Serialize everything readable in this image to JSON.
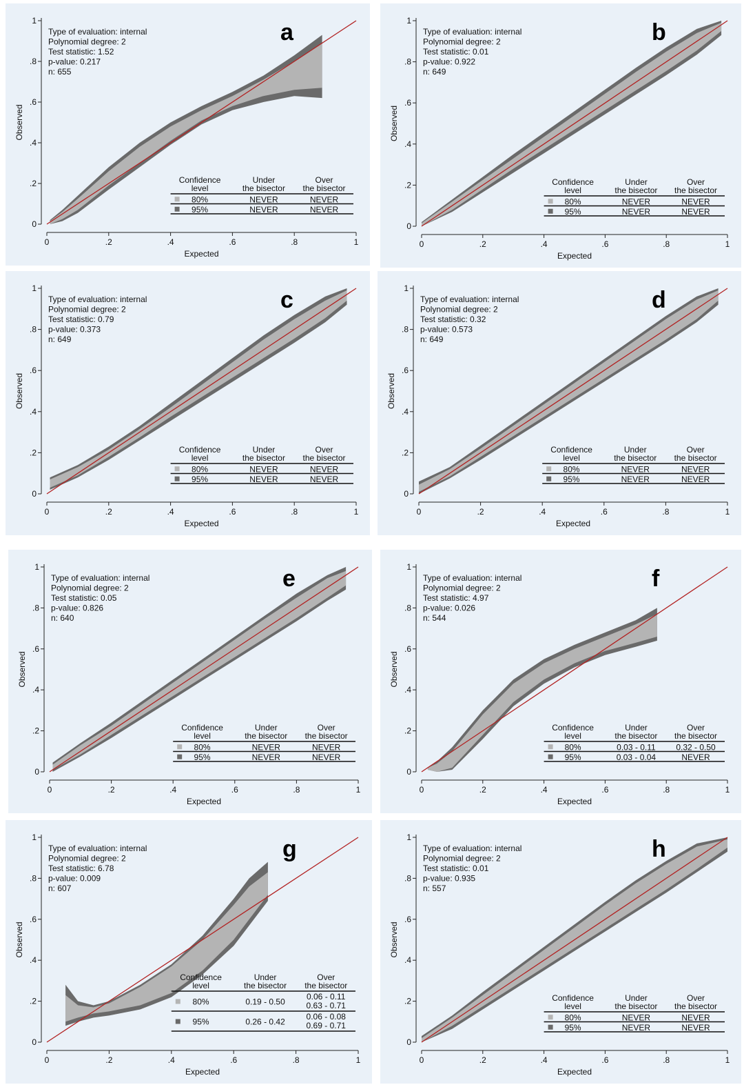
{
  "chart_data": [
    {
      "type": "area",
      "letter": "a",
      "xlabel": "Expected",
      "ylabel": "Observed",
      "xlim": [
        0,
        1
      ],
      "ylim": [
        0,
        1
      ],
      "x_ticks": [
        "0",
        ".2",
        ".4",
        ".6",
        ".8",
        "1"
      ],
      "y_ticks": [
        "0",
        ".2",
        ".4",
        ".6",
        ".8",
        "1"
      ],
      "info": [
        "Type of evaluation: internal",
        "Polynomial degree: 2",
        "Test statistic: 1.52",
        "p-value: 0.217",
        "n: 655"
      ],
      "legend": {
        "headers": [
          [
            "Confidence",
            "level"
          ],
          [
            "Under",
            "the bisector"
          ],
          [
            "Over",
            "the bisector"
          ]
        ],
        "rows": [
          {
            "level": "80%",
            "under": [
              "NEVER"
            ],
            "over": [
              "NEVER"
            ]
          },
          {
            "level": "95%",
            "under": [
              "NEVER"
            ],
            "over": [
              "NEVER"
            ]
          }
        ]
      },
      "band_x": [
        0.01,
        0.05,
        0.1,
        0.2,
        0.3,
        0.4,
        0.5,
        0.6,
        0.7,
        0.8,
        0.89
      ],
      "ci95_upper": [
        0.02,
        0.07,
        0.14,
        0.28,
        0.4,
        0.5,
        0.58,
        0.65,
        0.73,
        0.83,
        0.93
      ],
      "ci80_upper": [
        0.015,
        0.06,
        0.125,
        0.26,
        0.38,
        0.48,
        0.56,
        0.63,
        0.71,
        0.8,
        0.89
      ],
      "ci80_lower": [
        0.0,
        0.025,
        0.07,
        0.19,
        0.3,
        0.41,
        0.51,
        0.58,
        0.63,
        0.66,
        0.67
      ],
      "ci95_lower": [
        0.0,
        0.015,
        0.055,
        0.17,
        0.28,
        0.39,
        0.49,
        0.56,
        0.6,
        0.63,
        0.62
      ]
    },
    {
      "type": "area",
      "letter": "b",
      "xlabel": "Expected",
      "ylabel": "Observed",
      "xlim": [
        0,
        1
      ],
      "ylim": [
        0,
        1
      ],
      "x_ticks": [
        "0",
        ".2",
        ".4",
        ".6",
        ".8",
        "1"
      ],
      "y_ticks": [
        "0",
        ".2",
        ".4",
        ".6",
        ".8",
        "1"
      ],
      "info": [
        "Type of evaluation: internal",
        "Polynomial degree: 2",
        "Test statistic: 0.01",
        "p-value: 0.922",
        "n: 649"
      ],
      "legend": {
        "headers": [
          [
            "Confidence",
            "level"
          ],
          [
            "Under",
            "the bisector"
          ],
          [
            "Over",
            "the bisector"
          ]
        ],
        "rows": [
          {
            "level": "80%",
            "under": [
              "NEVER"
            ],
            "over": [
              "NEVER"
            ]
          },
          {
            "level": "95%",
            "under": [
              "NEVER"
            ],
            "over": [
              "NEVER"
            ]
          }
        ]
      },
      "band_x": [
        0.0,
        0.1,
        0.2,
        0.3,
        0.4,
        0.5,
        0.6,
        0.7,
        0.8,
        0.9,
        0.98
      ],
      "ci95_upper": [
        0.02,
        0.13,
        0.24,
        0.35,
        0.455,
        0.56,
        0.665,
        0.77,
        0.87,
        0.96,
        1.0
      ],
      "ci80_upper": [
        0.015,
        0.12,
        0.225,
        0.33,
        0.435,
        0.54,
        0.645,
        0.75,
        0.85,
        0.94,
        0.99
      ],
      "ci80_lower": [
        0.0,
        0.08,
        0.18,
        0.28,
        0.375,
        0.47,
        0.565,
        0.66,
        0.755,
        0.855,
        0.95
      ],
      "ci95_lower": [
        0.0,
        0.07,
        0.165,
        0.26,
        0.355,
        0.45,
        0.545,
        0.64,
        0.735,
        0.835,
        0.93
      ]
    },
    {
      "type": "area",
      "letter": "c",
      "xlabel": "Expected",
      "ylabel": "Observed",
      "xlim": [
        0,
        1
      ],
      "ylim": [
        0,
        1
      ],
      "x_ticks": [
        "0",
        ".2",
        ".4",
        ".6",
        ".8",
        "1"
      ],
      "y_ticks": [
        "0",
        ".2",
        ".4",
        ".6",
        ".8",
        "1"
      ],
      "info": [
        "Type of evaluation: internal",
        "Polynomial degree: 2",
        "Test statistic: 0.79",
        "p-value: 0.373",
        "n: 649"
      ],
      "legend": {
        "headers": [
          [
            "Confidence",
            "level"
          ],
          [
            "Under",
            "the bisector"
          ],
          [
            "Over",
            "the bisector"
          ]
        ],
        "rows": [
          {
            "level": "80%",
            "under": [
              "NEVER"
            ],
            "over": [
              "NEVER"
            ]
          },
          {
            "level": "95%",
            "under": [
              "NEVER"
            ],
            "over": [
              "NEVER"
            ]
          }
        ]
      },
      "band_x": [
        0.01,
        0.1,
        0.2,
        0.3,
        0.4,
        0.5,
        0.6,
        0.7,
        0.8,
        0.9,
        0.97
      ],
      "ci95_upper": [
        0.08,
        0.14,
        0.23,
        0.33,
        0.44,
        0.55,
        0.66,
        0.77,
        0.87,
        0.96,
        1.0
      ],
      "ci80_upper": [
        0.07,
        0.13,
        0.215,
        0.315,
        0.42,
        0.53,
        0.64,
        0.75,
        0.85,
        0.94,
        0.99
      ],
      "ci80_lower": [
        0.03,
        0.09,
        0.18,
        0.275,
        0.375,
        0.47,
        0.565,
        0.66,
        0.755,
        0.855,
        0.94
      ],
      "ci95_lower": [
        0.02,
        0.08,
        0.165,
        0.26,
        0.355,
        0.45,
        0.545,
        0.64,
        0.735,
        0.835,
        0.92
      ]
    },
    {
      "type": "area",
      "letter": "d",
      "xlabel": "Expected",
      "ylabel": "Observed",
      "xlim": [
        0,
        1
      ],
      "ylim": [
        0,
        1
      ],
      "x_ticks": [
        "0",
        ".2",
        ".4",
        ".6",
        ".8",
        "1"
      ],
      "y_ticks": [
        "0",
        ".2",
        ".4",
        ".6",
        ".8",
        "1"
      ],
      "info": [
        "Type of evaluation: internal",
        "Polynomial degree: 2",
        "Test statistic: 0.32",
        "p-value: 0.573",
        "n: 649"
      ],
      "legend": {
        "headers": [
          [
            "Confidence",
            "level"
          ],
          [
            "Under",
            "the bisector"
          ],
          [
            "Over",
            "the bisector"
          ]
        ],
        "rows": [
          {
            "level": "80%",
            "under": [
              "NEVER"
            ],
            "over": [
              "NEVER"
            ]
          },
          {
            "level": "95%",
            "under": [
              "NEVER"
            ],
            "over": [
              "NEVER"
            ]
          }
        ]
      },
      "band_x": [
        0.0,
        0.1,
        0.2,
        0.3,
        0.4,
        0.5,
        0.6,
        0.7,
        0.8,
        0.9,
        0.97
      ],
      "ci95_upper": [
        0.06,
        0.13,
        0.235,
        0.34,
        0.445,
        0.55,
        0.655,
        0.76,
        0.865,
        0.96,
        1.0
      ],
      "ci80_upper": [
        0.045,
        0.12,
        0.22,
        0.325,
        0.43,
        0.535,
        0.64,
        0.745,
        0.85,
        0.945,
        0.99
      ],
      "ci80_lower": [
        0.01,
        0.085,
        0.18,
        0.275,
        0.37,
        0.465,
        0.56,
        0.655,
        0.75,
        0.85,
        0.94
      ],
      "ci95_lower": [
        0.0,
        0.075,
        0.165,
        0.26,
        0.355,
        0.45,
        0.545,
        0.64,
        0.735,
        0.835,
        0.92
      ]
    },
    {
      "type": "area",
      "letter": "e",
      "xlabel": "Expected",
      "ylabel": "Observed",
      "xlim": [
        0,
        1
      ],
      "ylim": [
        0,
        1
      ],
      "x_ticks": [
        "0",
        ".2",
        ".4",
        ".6",
        ".8",
        "1"
      ],
      "y_ticks": [
        "0",
        ".2",
        ".4",
        ".6",
        ".8",
        "1"
      ],
      "info": [
        "Type of evaluation: internal",
        "Polynomial degree: 2",
        "Test statistic: 0.05",
        "p-value: 0.826",
        "n: 640"
      ],
      "legend": {
        "headers": [
          [
            "Confidence",
            "level"
          ],
          [
            "Under",
            "the bisector"
          ],
          [
            "Over",
            "the bisector"
          ]
        ],
        "rows": [
          {
            "level": "80%",
            "under": [
              "NEVER"
            ],
            "over": [
              "NEVER"
            ]
          },
          {
            "level": "95%",
            "under": [
              "NEVER"
            ],
            "over": [
              "NEVER"
            ]
          }
        ]
      },
      "band_x": [
        0.01,
        0.1,
        0.2,
        0.3,
        0.4,
        0.5,
        0.6,
        0.7,
        0.8,
        0.9,
        0.96
      ],
      "ci95_upper": [
        0.045,
        0.14,
        0.24,
        0.345,
        0.45,
        0.555,
        0.66,
        0.765,
        0.87,
        0.96,
        1.0
      ],
      "ci80_upper": [
        0.035,
        0.13,
        0.225,
        0.33,
        0.435,
        0.54,
        0.645,
        0.75,
        0.85,
        0.945,
        0.98
      ],
      "ci80_lower": [
        0.01,
        0.085,
        0.18,
        0.275,
        0.37,
        0.465,
        0.56,
        0.655,
        0.75,
        0.85,
        0.91
      ],
      "ci95_lower": [
        0.0,
        0.075,
        0.165,
        0.26,
        0.355,
        0.45,
        0.545,
        0.64,
        0.735,
        0.835,
        0.89
      ]
    },
    {
      "type": "area",
      "letter": "f",
      "xlabel": "Expected",
      "ylabel": "Observed",
      "xlim": [
        0,
        1
      ],
      "ylim": [
        0,
        1
      ],
      "x_ticks": [
        "0",
        ".2",
        ".4",
        ".6",
        ".8",
        "1"
      ],
      "y_ticks": [
        "0",
        ".2",
        ".4",
        ".6",
        ".8",
        "1"
      ],
      "info": [
        "Type of evaluation: internal",
        "Polynomial degree: 2",
        "Test statistic: 4.97",
        "p-value: 0.026",
        "n: 544"
      ],
      "legend": {
        "headers": [
          [
            "Confidence",
            "level"
          ],
          [
            "Under",
            "the bisector"
          ],
          [
            "Over",
            "the bisector"
          ]
        ],
        "rows": [
          {
            "level": "80%",
            "under": [
              "0.03 - 0.11"
            ],
            "over": [
              "0.32 - 0.50"
            ]
          },
          {
            "level": "95%",
            "under": [
              "0.03 - 0.04"
            ],
            "over": [
              "NEVER"
            ]
          }
        ]
      },
      "band_x": [
        0.02,
        0.05,
        0.1,
        0.2,
        0.3,
        0.4,
        0.5,
        0.6,
        0.7,
        0.77
      ],
      "ci95_upper": [
        0.02,
        0.05,
        0.12,
        0.3,
        0.45,
        0.55,
        0.62,
        0.68,
        0.74,
        0.8
      ],
      "ci80_upper": [
        0.02,
        0.04,
        0.1,
        0.28,
        0.43,
        0.53,
        0.6,
        0.66,
        0.72,
        0.77
      ],
      "ci80_lower": [
        0.01,
        0.0,
        0.02,
        0.18,
        0.34,
        0.45,
        0.53,
        0.59,
        0.63,
        0.66
      ],
      "ci95_lower": [
        0.01,
        0.0,
        0.01,
        0.16,
        0.32,
        0.43,
        0.51,
        0.57,
        0.61,
        0.64
      ]
    },
    {
      "type": "area",
      "letter": "g",
      "xlabel": "Expected",
      "ylabel": "Observed",
      "xlim": [
        0,
        1
      ],
      "ylim": [
        0,
        1
      ],
      "x_ticks": [
        "0",
        ".2",
        ".4",
        ".6",
        ".8",
        "1"
      ],
      "y_ticks": [
        "0",
        ".2",
        ".4",
        ".6",
        ".8",
        "1"
      ],
      "info": [
        "Type of evaluation: internal",
        "Polynomial degree: 2",
        "Test statistic: 6.78",
        "p-value: 0.009",
        "n: 607"
      ],
      "legend": {
        "headers": [
          [
            "Confidence",
            "level"
          ],
          [
            "Under",
            "the bisector"
          ],
          [
            "Over",
            "the bisector"
          ]
        ],
        "rows": [
          {
            "level": "80%",
            "under": [
              "0.19 - 0.50"
            ],
            "over": [
              "0.06 - 0.11",
              "0.63 - 0.71"
            ]
          },
          {
            "level": "95%",
            "under": [
              "0.26 - 0.42"
            ],
            "over": [
              "0.06 - 0.08",
              "0.69 - 0.71"
            ]
          }
        ]
      },
      "band_x": [
        0.06,
        0.1,
        0.15,
        0.2,
        0.3,
        0.4,
        0.5,
        0.6,
        0.65,
        0.71
      ],
      "ci95_upper": [
        0.28,
        0.2,
        0.18,
        0.2,
        0.28,
        0.38,
        0.52,
        0.7,
        0.8,
        0.88
      ],
      "ci80_upper": [
        0.23,
        0.18,
        0.17,
        0.19,
        0.27,
        0.37,
        0.5,
        0.67,
        0.76,
        0.83
      ],
      "ci80_lower": [
        0.1,
        0.12,
        0.14,
        0.15,
        0.18,
        0.24,
        0.35,
        0.5,
        0.6,
        0.72
      ],
      "ci95_lower": [
        0.08,
        0.1,
        0.12,
        0.13,
        0.16,
        0.22,
        0.33,
        0.47,
        0.57,
        0.69
      ]
    },
    {
      "type": "area",
      "letter": "h",
      "xlabel": "Expected",
      "ylabel": "Observed",
      "xlim": [
        0,
        1
      ],
      "ylim": [
        0,
        1
      ],
      "x_ticks": [
        "0",
        ".2",
        ".4",
        ".6",
        ".8",
        "1"
      ],
      "y_ticks": [
        "0",
        ".2",
        ".4",
        ".6",
        ".8",
        "1"
      ],
      "info": [
        "Type of evaluation: internal",
        "Polynomial degree: 2",
        "Test statistic: 0.01",
        "p-value: 0.935",
        "n: 557"
      ],
      "legend": {
        "headers": [
          [
            "Confidence",
            "level"
          ],
          [
            "Under",
            "the bisector"
          ],
          [
            "Over",
            "the bisector"
          ]
        ],
        "rows": [
          {
            "level": "80%",
            "under": [
              "NEVER"
            ],
            "over": [
              "NEVER"
            ]
          },
          {
            "level": "95%",
            "under": [
              "NEVER"
            ],
            "over": [
              "NEVER"
            ]
          }
        ]
      },
      "band_x": [
        0.0,
        0.1,
        0.2,
        0.3,
        0.4,
        0.5,
        0.6,
        0.7,
        0.8,
        0.9,
        1.0
      ],
      "ci95_upper": [
        0.03,
        0.13,
        0.245,
        0.355,
        0.465,
        0.575,
        0.685,
        0.79,
        0.885,
        0.97,
        1.0
      ],
      "ci80_upper": [
        0.02,
        0.12,
        0.23,
        0.34,
        0.45,
        0.56,
        0.67,
        0.775,
        0.87,
        0.955,
        0.99
      ],
      "ci80_lower": [
        0.0,
        0.08,
        0.175,
        0.27,
        0.365,
        0.46,
        0.555,
        0.65,
        0.745,
        0.845,
        0.95
      ],
      "ci95_lower": [
        0.0,
        0.065,
        0.16,
        0.255,
        0.35,
        0.445,
        0.54,
        0.635,
        0.73,
        0.83,
        0.93
      ]
    }
  ]
}
